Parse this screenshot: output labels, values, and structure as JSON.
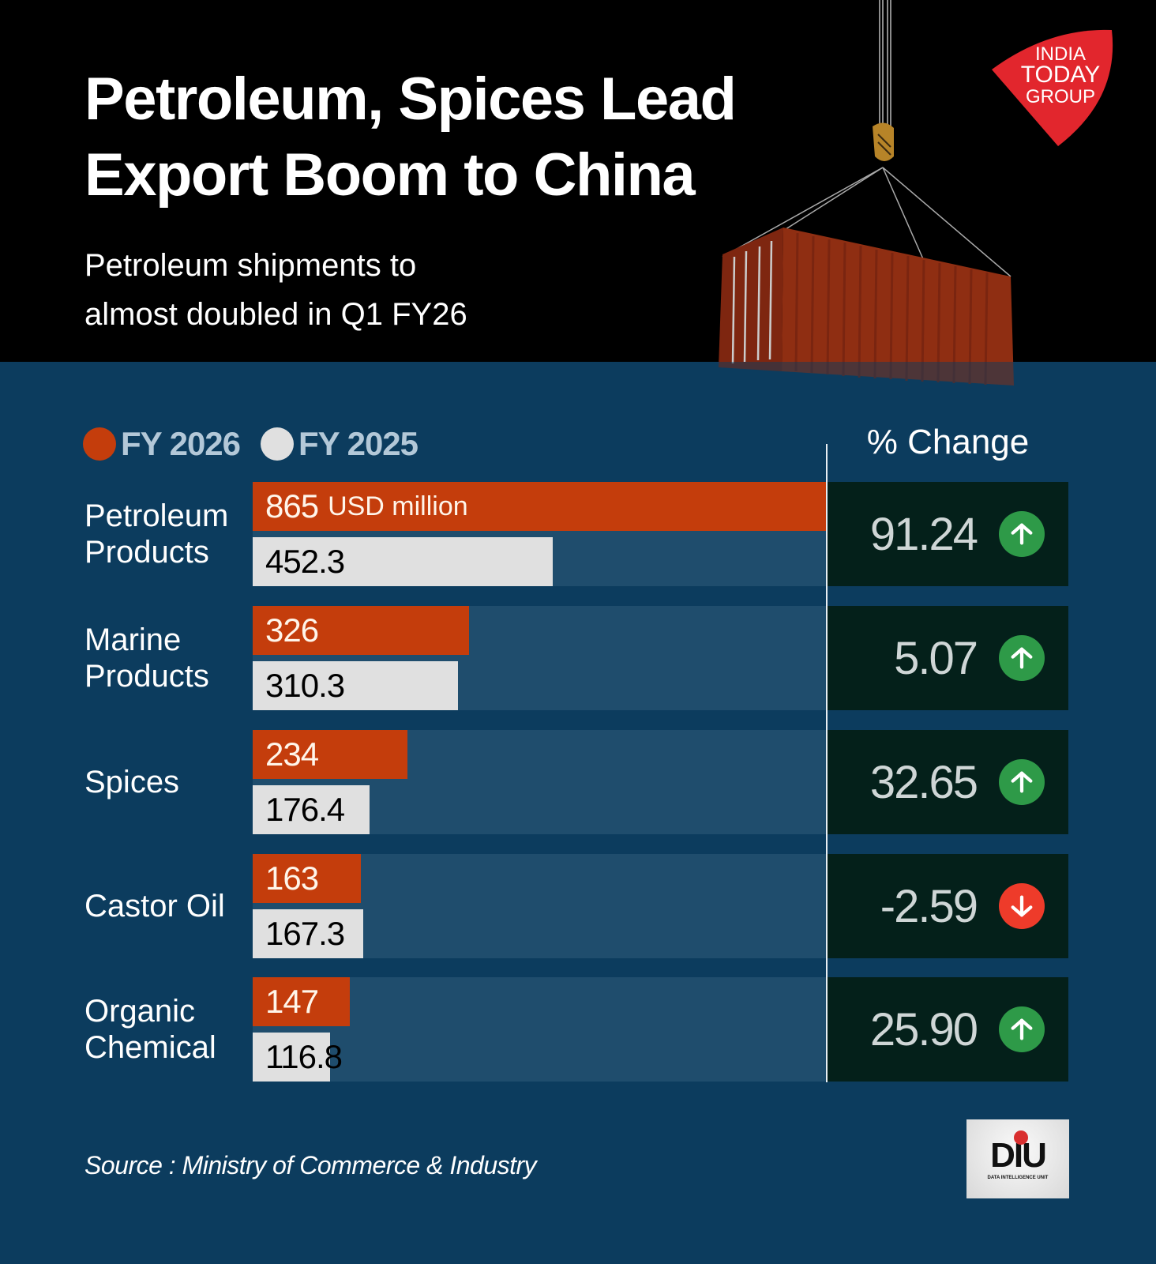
{
  "header": {
    "title_line1": "Petroleum, Spices Lead",
    "title_line2": "Export Boom to China",
    "subtitle_line1": "Petroleum shipments to",
    "subtitle_line2": "almost doubled in Q1 FY26",
    "logo_lines": [
      "INDIA",
      "TODAY",
      "GROUP"
    ]
  },
  "colors": {
    "fy2026": "#c43d0c",
    "fy2025": "#e0e0e0",
    "up": "#2e9a48",
    "down": "#ee3b2a",
    "background": "#0c3c5e",
    "header_bg": "#000000"
  },
  "change_header": "% Change",
  "unit_label": "USD million",
  "source": "Source : Ministry of Commerce & Industry",
  "footer_logo": {
    "word": "DIU",
    "sub": "DATA INTELLIGENCE UNIT"
  },
  "chart_data": {
    "type": "bar",
    "orientation": "horizontal",
    "title": "Petroleum, Spices Lead Export Boom to China",
    "subtitle": "Petroleum shipments to almost doubled in Q1 FY26",
    "unit": "USD million",
    "categories": [
      "Petroleum Products",
      "Marine Products",
      "Spices",
      "Castor Oil",
      "Organic Chemical"
    ],
    "series": [
      {
        "name": "FY 2026",
        "values": [
          865,
          326,
          234,
          163,
          147
        ],
        "labels": [
          "865",
          "326",
          "234",
          "163",
          "147"
        ]
      },
      {
        "name": "FY 2025",
        "values": [
          452.3,
          310.3,
          176.4,
          167.3,
          116.8
        ],
        "labels": [
          "452.3",
          "310.3",
          "176.4",
          "167.3",
          "116.8"
        ]
      }
    ],
    "pct_change": {
      "header": "% Change",
      "values": [
        91.24,
        5.07,
        32.65,
        -2.59,
        25.9
      ],
      "labels": [
        "91.24",
        "5.07",
        "32.65",
        "-2.59",
        "25.90"
      ],
      "direction": [
        "up",
        "up",
        "up",
        "down",
        "up"
      ]
    },
    "legend": [
      "FY 2026",
      "FY 2025"
    ],
    "legend_position": "top-left",
    "xlim": [
      0,
      865
    ],
    "grid": false
  }
}
